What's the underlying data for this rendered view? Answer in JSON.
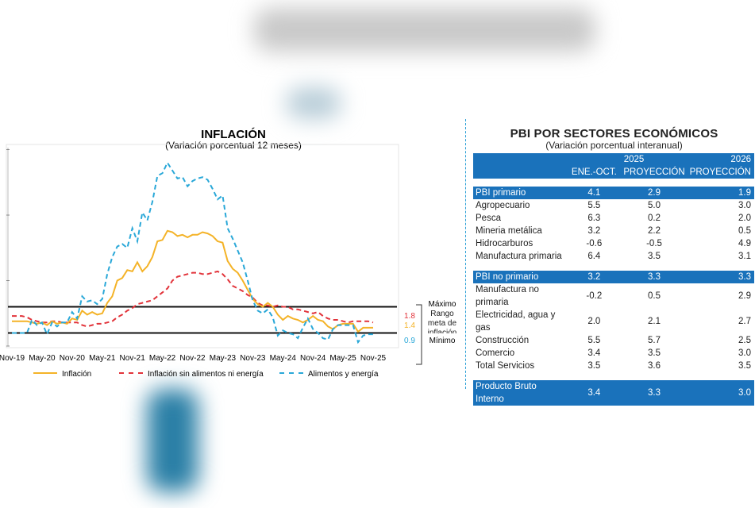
{
  "chart_data": {
    "type": "line",
    "title": "INFLACIÓN",
    "subtitle": "(Variación porcentual 12 meses)",
    "xlabel": "",
    "ylabel": "",
    "ylim": [
      0,
      15
    ],
    "x_tick_labels": [
      "Nov-19",
      "May-20",
      "Nov-20",
      "May-21",
      "Nov-21",
      "May-22",
      "Nov-22",
      "May-23",
      "Nov-23",
      "May-24",
      "Nov-24",
      "May-25",
      "Nov-25"
    ],
    "x_start": "Nov-19",
    "x_end": "Nov-25",
    "frequency": "monthly",
    "target_range": {
      "min": 1,
      "max": 3
    },
    "range_labels": {
      "max": "Máximo",
      "mid": "Rango meta de inflación",
      "min": "Mínimo"
    },
    "series": [
      {
        "name": "Inflación",
        "color": "#f4b328",
        "style": "solid",
        "end_label": "1.4",
        "values": [
          1.9,
          1.9,
          1.9,
          1.9,
          1.8,
          1.7,
          1.8,
          1.6,
          1.9,
          1.7,
          1.8,
          1.7,
          2.1,
          2.0,
          2.7,
          2.4,
          2.6,
          2.4,
          2.5,
          3.3,
          3.8,
          5.0,
          5.2,
          5.8,
          5.7,
          6.4,
          5.7,
          6.1,
          6.8,
          8.0,
          8.1,
          8.8,
          8.7,
          8.4,
          8.5,
          8.3,
          8.5,
          8.5,
          8.7,
          8.6,
          8.4,
          8.0,
          7.9,
          6.5,
          5.9,
          5.6,
          5.0,
          4.3,
          3.6,
          3.2,
          3.0,
          3.3,
          3.0,
          2.4,
          2.0,
          2.3,
          2.1,
          2.0,
          1.8,
          2.0,
          2.3,
          2.0,
          1.9,
          1.5,
          1.3,
          1.6,
          1.7,
          1.7,
          1.7,
          1.1,
          1.4,
          1.4,
          1.4
        ]
      },
      {
        "name": "Inflación sin alimentos ni energía",
        "color": "#e2343b",
        "style": "dashed",
        "end_label": "1.8",
        "values": [
          2.3,
          2.3,
          2.3,
          2.2,
          2.0,
          1.9,
          1.8,
          1.8,
          1.9,
          1.9,
          1.8,
          1.8,
          1.8,
          1.8,
          1.6,
          1.5,
          1.6,
          1.7,
          1.7,
          1.8,
          1.9,
          2.2,
          2.4,
          2.7,
          2.9,
          3.2,
          3.3,
          3.4,
          3.5,
          3.8,
          4.1,
          4.4,
          5.0,
          5.3,
          5.4,
          5.5,
          5.6,
          5.6,
          5.5,
          5.5,
          5.6,
          5.7,
          5.5,
          5.1,
          4.6,
          4.4,
          4.2,
          3.9,
          3.7,
          3.3,
          3.1,
          3.1,
          3.0,
          3.1,
          3.0,
          3.0,
          2.8,
          2.8,
          2.7,
          2.6,
          2.5,
          2.6,
          2.3,
          2.1,
          2.0,
          2.0,
          1.9,
          1.8,
          1.9,
          1.9,
          1.9,
          1.9,
          1.8
        ]
      },
      {
        "name": "Alimentos y energía",
        "color": "#2aa8d8",
        "style": "dashed",
        "end_label": "0.9",
        "values": [
          1.0,
          1.0,
          1.0,
          1.0,
          2.0,
          1.6,
          1.8,
          0.9,
          1.8,
          1.5,
          1.8,
          1.8,
          2.6,
          2.1,
          3.8,
          3.4,
          3.5,
          3.2,
          3.6,
          5.5,
          6.8,
          7.6,
          7.8,
          7.5,
          9.0,
          8.0,
          10.2,
          9.6,
          11.0,
          13.0,
          13.2,
          14.0,
          13.4,
          12.8,
          12.9,
          12.2,
          12.6,
          12.8,
          12.9,
          12.7,
          12.0,
          11.2,
          11.5,
          9.0,
          8.2,
          7.3,
          6.4,
          5.0,
          3.5,
          2.7,
          2.5,
          2.8,
          2.2,
          0.8,
          1.2,
          1.0,
          0.9,
          0.6,
          1.4,
          2.1,
          1.3,
          1.0,
          0.6,
          0.5,
          1.3,
          1.6,
          1.6,
          1.6,
          1.6,
          0.3,
          0.8,
          0.9,
          0.9
        ]
      }
    ],
    "legend_position": "bottom"
  },
  "table": {
    "title": "PBI POR SECTORES ECONÓMICOS",
    "subtitle": "(Variación porcentual interanual)",
    "header_year1": "2025",
    "header_year2": "2026",
    "columns": [
      "ENE.-OCT.",
      "PROYECCIÓN",
      "PROYECCIÓN"
    ],
    "groups": [
      {
        "label": "PBI primario",
        "values": [
          "4.1",
          "2.9",
          "1.9"
        ],
        "rows": [
          {
            "label": "Agropecuario",
            "values": [
              "5.5",
              "5.0",
              "3.0"
            ]
          },
          {
            "label": "Pesca",
            "values": [
              "6.3",
              "0.2",
              "2.0"
            ]
          },
          {
            "label": "Mineria metálica",
            "values": [
              "3.2",
              "2.2",
              "0.5"
            ]
          },
          {
            "label": "Hidrocarburos",
            "values": [
              "-0.6",
              "-0.5",
              "4.9"
            ]
          },
          {
            "label": "Manufactura primaria",
            "values": [
              "6.4",
              "3.5",
              "3.1"
            ]
          }
        ]
      },
      {
        "label": "PBI no primario",
        "values": [
          "3.2",
          "3.3",
          "3.3"
        ],
        "rows": [
          {
            "label": "Manufactura no primaria",
            "values": [
              "-0.2",
              "0.5",
              "2.9"
            ]
          },
          {
            "label": "Electricidad, agua y gas",
            "values": [
              "2.0",
              "2.1",
              "2.7"
            ]
          },
          {
            "label": "Construcción",
            "values": [
              "5.5",
              "5.7",
              "2.5"
            ]
          },
          {
            "label": "Comercio",
            "values": [
              "3.4",
              "3.5",
              "3.0"
            ]
          },
          {
            "label": "Total Servicios",
            "values": [
              "3.5",
              "3.6",
              "3.5"
            ]
          }
        ]
      }
    ],
    "total": {
      "label": "Producto Bruto Interno",
      "values": [
        "3.4",
        "3.3",
        "3.0"
      ]
    },
    "band_color": "#1a72bb"
  }
}
